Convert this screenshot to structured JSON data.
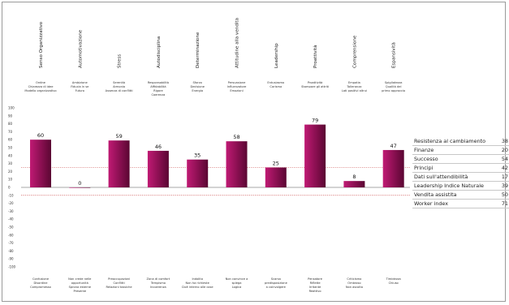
{
  "colors": {
    "bar": "#c01a74",
    "bar_dark": "#5a0632",
    "zero_line": "#8a8a8a",
    "ref_line": "#c53a3a"
  },
  "chart_data": {
    "type": "bar",
    "title": "",
    "xlabel": "",
    "ylabel": "",
    "ylim": [
      -100,
      100
    ],
    "yticks": [
      100,
      90,
      80,
      70,
      60,
      50,
      40,
      30,
      20,
      10,
      0,
      -10,
      -20,
      -30,
      -40,
      -50,
      -60,
      -70,
      -80,
      -90,
      -100
    ],
    "reference_lines": [
      25,
      -10
    ],
    "categories": [
      "Senso Organizzativo",
      "Automotivazione",
      "Stress",
      "Autodisciplina",
      "Determinazione",
      "Attitudine alla vendita",
      "Leadership",
      "Proattività",
      "Comprensione",
      "Espansività"
    ],
    "values": [
      60,
      0,
      59,
      46,
      35,
      58,
      25,
      79,
      8,
      47
    ],
    "top_descriptors": [
      [
        "Ordine",
        "Chiarezza di idee",
        "Modello organizzativo"
      ],
      [
        "Ambizione",
        "Fiducia in se",
        "Futuro"
      ],
      [
        "Serenità",
        "Armonia",
        "Assenza di conflitti"
      ],
      [
        "Responsabilità",
        "Affidabilità",
        "Rigore",
        "Coerenza"
      ],
      [
        "Sforzo",
        "Decisione",
        "Energia"
      ],
      [
        "Persuasione",
        "Influenzatore",
        "Emozioni"
      ],
      [
        "Entusiasmo",
        "Carisma"
      ],
      [
        "Proattività",
        "Stampare gli attriti"
      ],
      [
        "Empatia",
        "Tolleranza",
        "Lati positivi altrui"
      ],
      [
        "Spigliatezza",
        "Qualità dei",
        "primo approccio"
      ]
    ],
    "bottom_descriptors": [
      [
        "Confusione",
        "Disordine",
        "Compromesso"
      ],
      [
        "Non crede nelle",
        "opportunità",
        "Sprona esterne",
        "Presente"
      ],
      [
        "Preoccupazioni",
        "Conflitti",
        "Relazioni tossiche"
      ],
      [
        "Zona di comfort",
        "Tempismo",
        "Incoerenza"
      ],
      [
        "Indolito",
        "Non ha richieste",
        "Cioè interno alle cose"
      ],
      [
        "Non convince a",
        "spiega",
        "Logica"
      ],
      [
        "Scarsa",
        "predisposizione",
        "a coinvolgere"
      ],
      [
        "Pensatore",
        "Riflette",
        "Irritante",
        "Reattivo"
      ],
      [
        "Criticismo",
        "Ombroso",
        "Non ascolta"
      ],
      [
        "Timidezza",
        "Chiuso"
      ]
    ]
  },
  "side_table": [
    {
      "label": "Resistenza al cambiamento",
      "value": "38"
    },
    {
      "label": "Finanze",
      "value": "20"
    },
    {
      "label": "Successo",
      "value": "54"
    },
    {
      "label": "Principi",
      "value": "42"
    },
    {
      "label": "Dati sull'attendibilità",
      "value": "17"
    },
    {
      "label": "Leadership Indice Naturale",
      "value": "39"
    },
    {
      "label": "Vendita assistita",
      "value": "50"
    },
    {
      "label": "Worker index",
      "value": "71"
    }
  ]
}
